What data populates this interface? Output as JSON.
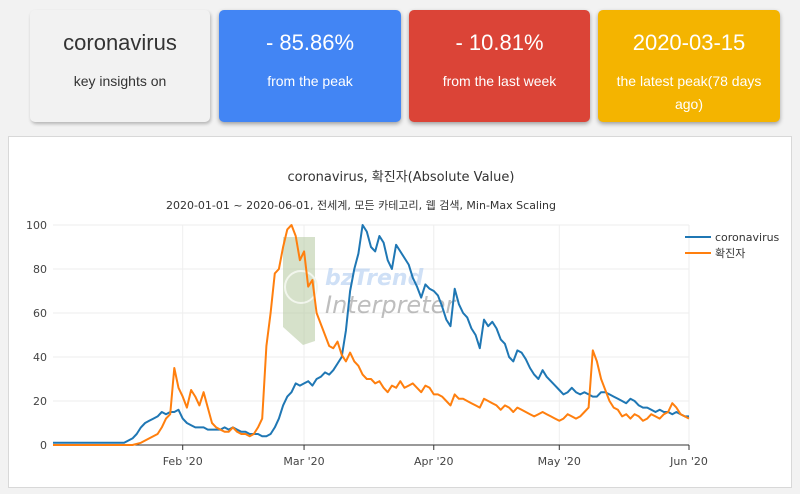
{
  "cards": {
    "keyword": {
      "title": "coronavirus",
      "subtitle": "key insights on"
    },
    "peak": {
      "value": "- 85.86%",
      "caption": "from the peak",
      "color": "#4285f4"
    },
    "week": {
      "value": "- 10.81%",
      "caption": "from the last week",
      "color": "#db4437"
    },
    "latest": {
      "value": "2020-03-15",
      "caption": "the latest peak(78 days ago)",
      "color": "#f4b400"
    }
  },
  "watermark": {
    "line1": "bzTrend",
    "line2": "Interpreter"
  },
  "chart_data": {
    "type": "line",
    "title": "coronavirus, 확진자(Absolute Value)",
    "subtitle": "2020-01-01 ~ 2020-06-01, 전세계, 모든 카테고리, 웹 검색, Min-Max Scaling",
    "ylim": [
      0,
      100
    ],
    "yticks": [
      0,
      20,
      40,
      60,
      80,
      100
    ],
    "xlim": [
      "2020-01-01",
      "2020-06-01"
    ],
    "xticks": [
      {
        "date": "2020-02-01",
        "label": "Feb '20"
      },
      {
        "date": "2020-03-01",
        "label": "Mar '20"
      },
      {
        "date": "2020-04-01",
        "label": "Apr '20"
      },
      {
        "date": "2020-05-01",
        "label": "May '20"
      },
      {
        "date": "2020-06-01",
        "label": "Jun '20"
      }
    ],
    "grid": true,
    "legend_position": "right",
    "series": [
      {
        "name": "coronavirus",
        "color": "#1f77b4",
        "points": [
          [
            "2020-01-01",
            1
          ],
          [
            "2020-01-06",
            1
          ],
          [
            "2020-01-10",
            1
          ],
          [
            "2020-01-15",
            1
          ],
          [
            "2020-01-18",
            1
          ],
          [
            "2020-01-20",
            3
          ],
          [
            "2020-01-21",
            5
          ],
          [
            "2020-01-22",
            8
          ],
          [
            "2020-01-23",
            10
          ],
          [
            "2020-01-24",
            11
          ],
          [
            "2020-01-25",
            12
          ],
          [
            "2020-01-26",
            13
          ],
          [
            "2020-01-27",
            15
          ],
          [
            "2020-01-28",
            14
          ],
          [
            "2020-01-29",
            15
          ],
          [
            "2020-01-30",
            15
          ],
          [
            "2020-01-31",
            16
          ],
          [
            "2020-02-01",
            12
          ],
          [
            "2020-02-02",
            10
          ],
          [
            "2020-02-03",
            9
          ],
          [
            "2020-02-04",
            8
          ],
          [
            "2020-02-05",
            8
          ],
          [
            "2020-02-06",
            8
          ],
          [
            "2020-02-07",
            7
          ],
          [
            "2020-02-08",
            7
          ],
          [
            "2020-02-09",
            7
          ],
          [
            "2020-02-10",
            7
          ],
          [
            "2020-02-11",
            8
          ],
          [
            "2020-02-12",
            7
          ],
          [
            "2020-02-13",
            8
          ],
          [
            "2020-02-14",
            7
          ],
          [
            "2020-02-15",
            6
          ],
          [
            "2020-02-16",
            6
          ],
          [
            "2020-02-17",
            5
          ],
          [
            "2020-02-18",
            5
          ],
          [
            "2020-02-19",
            5
          ],
          [
            "2020-02-20",
            4
          ],
          [
            "2020-02-21",
            4
          ],
          [
            "2020-02-22",
            5
          ],
          [
            "2020-02-23",
            8
          ],
          [
            "2020-02-24",
            12
          ],
          [
            "2020-02-25",
            18
          ],
          [
            "2020-02-26",
            22
          ],
          [
            "2020-02-27",
            24
          ],
          [
            "2020-02-28",
            28
          ],
          [
            "2020-02-29",
            27
          ],
          [
            "2020-03-01",
            28
          ],
          [
            "2020-03-02",
            29
          ],
          [
            "2020-03-03",
            27
          ],
          [
            "2020-03-04",
            30
          ],
          [
            "2020-03-05",
            31
          ],
          [
            "2020-03-06",
            33
          ],
          [
            "2020-03-07",
            32
          ],
          [
            "2020-03-08",
            34
          ],
          [
            "2020-03-09",
            37
          ],
          [
            "2020-03-10",
            40
          ],
          [
            "2020-03-11",
            52
          ],
          [
            "2020-03-12",
            70
          ],
          [
            "2020-03-13",
            80
          ],
          [
            "2020-03-14",
            87
          ],
          [
            "2020-03-15",
            100
          ],
          [
            "2020-03-16",
            97
          ],
          [
            "2020-03-17",
            90
          ],
          [
            "2020-03-18",
            88
          ],
          [
            "2020-03-19",
            95
          ],
          [
            "2020-03-20",
            92
          ],
          [
            "2020-03-21",
            84
          ],
          [
            "2020-03-22",
            80
          ],
          [
            "2020-03-23",
            91
          ],
          [
            "2020-03-24",
            88
          ],
          [
            "2020-03-25",
            85
          ],
          [
            "2020-03-26",
            82
          ],
          [
            "2020-03-27",
            76
          ],
          [
            "2020-03-28",
            72
          ],
          [
            "2020-03-29",
            67
          ],
          [
            "2020-03-30",
            73
          ],
          [
            "2020-03-31",
            71
          ],
          [
            "2020-04-01",
            70
          ],
          [
            "2020-04-02",
            68
          ],
          [
            "2020-04-03",
            63
          ],
          [
            "2020-04-04",
            57
          ],
          [
            "2020-04-05",
            54
          ],
          [
            "2020-04-06",
            71
          ],
          [
            "2020-04-07",
            64
          ],
          [
            "2020-04-08",
            60
          ],
          [
            "2020-04-09",
            58
          ],
          [
            "2020-04-10",
            53
          ],
          [
            "2020-04-11",
            50
          ],
          [
            "2020-04-12",
            44
          ],
          [
            "2020-04-13",
            57
          ],
          [
            "2020-04-14",
            54
          ],
          [
            "2020-04-15",
            56
          ],
          [
            "2020-04-16",
            53
          ],
          [
            "2020-04-17",
            48
          ],
          [
            "2020-04-18",
            46
          ],
          [
            "2020-04-19",
            40
          ],
          [
            "2020-04-20",
            38
          ],
          [
            "2020-04-21",
            43
          ],
          [
            "2020-04-22",
            42
          ],
          [
            "2020-04-23",
            39
          ],
          [
            "2020-04-24",
            35
          ],
          [
            "2020-04-25",
            32
          ],
          [
            "2020-04-26",
            30
          ],
          [
            "2020-04-27",
            34
          ],
          [
            "2020-04-28",
            31
          ],
          [
            "2020-04-29",
            29
          ],
          [
            "2020-04-30",
            27
          ],
          [
            "2020-05-01",
            25
          ],
          [
            "2020-05-02",
            23
          ],
          [
            "2020-05-03",
            24
          ],
          [
            "2020-05-04",
            26
          ],
          [
            "2020-05-05",
            24
          ],
          [
            "2020-05-06",
            23
          ],
          [
            "2020-05-07",
            24
          ],
          [
            "2020-05-08",
            23
          ],
          [
            "2020-05-09",
            22
          ],
          [
            "2020-05-10",
            22
          ],
          [
            "2020-05-11",
            24
          ],
          [
            "2020-05-12",
            24
          ],
          [
            "2020-05-13",
            23
          ],
          [
            "2020-05-14",
            22
          ],
          [
            "2020-05-15",
            21
          ],
          [
            "2020-05-16",
            20
          ],
          [
            "2020-05-17",
            19
          ],
          [
            "2020-05-18",
            21
          ],
          [
            "2020-05-19",
            20
          ],
          [
            "2020-05-20",
            18
          ],
          [
            "2020-05-21",
            17
          ],
          [
            "2020-05-22",
            17
          ],
          [
            "2020-05-23",
            16
          ],
          [
            "2020-05-24",
            15
          ],
          [
            "2020-05-25",
            16
          ],
          [
            "2020-05-26",
            15
          ],
          [
            "2020-05-27",
            15
          ],
          [
            "2020-05-28",
            14
          ],
          [
            "2020-05-29",
            15
          ],
          [
            "2020-05-30",
            14
          ],
          [
            "2020-05-31",
            13
          ],
          [
            "2020-06-01",
            13
          ]
        ]
      },
      {
        "name": "확진자",
        "color": "#ff7f0e",
        "points": [
          [
            "2020-01-01",
            0
          ],
          [
            "2020-01-10",
            0
          ],
          [
            "2020-01-18",
            0
          ],
          [
            "2020-01-20",
            0
          ],
          [
            "2020-01-22",
            1
          ],
          [
            "2020-01-24",
            3
          ],
          [
            "2020-01-26",
            5
          ],
          [
            "2020-01-27",
            8
          ],
          [
            "2020-01-28",
            12
          ],
          [
            "2020-01-29",
            14
          ],
          [
            "2020-01-30",
            35
          ],
          [
            "2020-01-31",
            26
          ],
          [
            "2020-02-01",
            22
          ],
          [
            "2020-02-02",
            17
          ],
          [
            "2020-02-03",
            25
          ],
          [
            "2020-02-04",
            22
          ],
          [
            "2020-02-05",
            18
          ],
          [
            "2020-02-06",
            24
          ],
          [
            "2020-02-07",
            17
          ],
          [
            "2020-02-08",
            10
          ],
          [
            "2020-02-09",
            8
          ],
          [
            "2020-02-10",
            7
          ],
          [
            "2020-02-11",
            6
          ],
          [
            "2020-02-12",
            6
          ],
          [
            "2020-02-13",
            8
          ],
          [
            "2020-02-14",
            6
          ],
          [
            "2020-02-15",
            5
          ],
          [
            "2020-02-16",
            5
          ],
          [
            "2020-02-17",
            4
          ],
          [
            "2020-02-18",
            5
          ],
          [
            "2020-02-19",
            8
          ],
          [
            "2020-02-20",
            12
          ],
          [
            "2020-02-21",
            45
          ],
          [
            "2020-02-22",
            60
          ],
          [
            "2020-02-23",
            78
          ],
          [
            "2020-02-24",
            80
          ],
          [
            "2020-02-25",
            90
          ],
          [
            "2020-02-26",
            98
          ],
          [
            "2020-02-27",
            100
          ],
          [
            "2020-02-28",
            95
          ],
          [
            "2020-02-29",
            84
          ],
          [
            "2020-03-01",
            88
          ],
          [
            "2020-03-02",
            72
          ],
          [
            "2020-03-03",
            75
          ],
          [
            "2020-03-04",
            60
          ],
          [
            "2020-03-05",
            55
          ],
          [
            "2020-03-06",
            50
          ],
          [
            "2020-03-07",
            45
          ],
          [
            "2020-03-08",
            44
          ],
          [
            "2020-03-09",
            47
          ],
          [
            "2020-03-10",
            41
          ],
          [
            "2020-03-11",
            38
          ],
          [
            "2020-03-12",
            42
          ],
          [
            "2020-03-13",
            38
          ],
          [
            "2020-03-14",
            36
          ],
          [
            "2020-03-15",
            32
          ],
          [
            "2020-03-16",
            30
          ],
          [
            "2020-03-17",
            30
          ],
          [
            "2020-03-18",
            28
          ],
          [
            "2020-03-19",
            29
          ],
          [
            "2020-03-20",
            26
          ],
          [
            "2020-03-21",
            24
          ],
          [
            "2020-03-22",
            27
          ],
          [
            "2020-03-23",
            26
          ],
          [
            "2020-03-24",
            29
          ],
          [
            "2020-03-25",
            26
          ],
          [
            "2020-03-26",
            27
          ],
          [
            "2020-03-27",
            28
          ],
          [
            "2020-03-28",
            26
          ],
          [
            "2020-03-29",
            24
          ],
          [
            "2020-03-30",
            27
          ],
          [
            "2020-03-31",
            26
          ],
          [
            "2020-04-01",
            23
          ],
          [
            "2020-04-02",
            23
          ],
          [
            "2020-04-03",
            22
          ],
          [
            "2020-04-04",
            20
          ],
          [
            "2020-04-05",
            18
          ],
          [
            "2020-04-06",
            23
          ],
          [
            "2020-04-07",
            21
          ],
          [
            "2020-04-08",
            21
          ],
          [
            "2020-04-09",
            20
          ],
          [
            "2020-04-10",
            19
          ],
          [
            "2020-04-11",
            18
          ],
          [
            "2020-04-12",
            17
          ],
          [
            "2020-04-13",
            21
          ],
          [
            "2020-04-14",
            20
          ],
          [
            "2020-04-15",
            19
          ],
          [
            "2020-04-16",
            18
          ],
          [
            "2020-04-17",
            16
          ],
          [
            "2020-04-18",
            18
          ],
          [
            "2020-04-19",
            17
          ],
          [
            "2020-04-20",
            15
          ],
          [
            "2020-04-21",
            17
          ],
          [
            "2020-04-22",
            16
          ],
          [
            "2020-04-23",
            15
          ],
          [
            "2020-04-24",
            14
          ],
          [
            "2020-04-25",
            13
          ],
          [
            "2020-04-26",
            14
          ],
          [
            "2020-04-27",
            15
          ],
          [
            "2020-04-28",
            14
          ],
          [
            "2020-04-29",
            13
          ],
          [
            "2020-04-30",
            12
          ],
          [
            "2020-05-01",
            11
          ],
          [
            "2020-05-02",
            12
          ],
          [
            "2020-05-03",
            14
          ],
          [
            "2020-05-04",
            13
          ],
          [
            "2020-05-05",
            12
          ],
          [
            "2020-05-06",
            13
          ],
          [
            "2020-05-07",
            15
          ],
          [
            "2020-05-08",
            17
          ],
          [
            "2020-05-09",
            43
          ],
          [
            "2020-05-10",
            38
          ],
          [
            "2020-05-11",
            30
          ],
          [
            "2020-05-12",
            25
          ],
          [
            "2020-05-13",
            20
          ],
          [
            "2020-05-14",
            17
          ],
          [
            "2020-05-15",
            16
          ],
          [
            "2020-05-16",
            13
          ],
          [
            "2020-05-17",
            14
          ],
          [
            "2020-05-18",
            12
          ],
          [
            "2020-05-19",
            14
          ],
          [
            "2020-05-20",
            13
          ],
          [
            "2020-05-21",
            11
          ],
          [
            "2020-05-22",
            12
          ],
          [
            "2020-05-23",
            14
          ],
          [
            "2020-05-24",
            13
          ],
          [
            "2020-05-25",
            12
          ],
          [
            "2020-05-26",
            14
          ],
          [
            "2020-05-27",
            15
          ],
          [
            "2020-05-28",
            19
          ],
          [
            "2020-05-29",
            17
          ],
          [
            "2020-05-30",
            14
          ],
          [
            "2020-05-31",
            13
          ],
          [
            "2020-06-01",
            12
          ]
        ]
      }
    ]
  }
}
